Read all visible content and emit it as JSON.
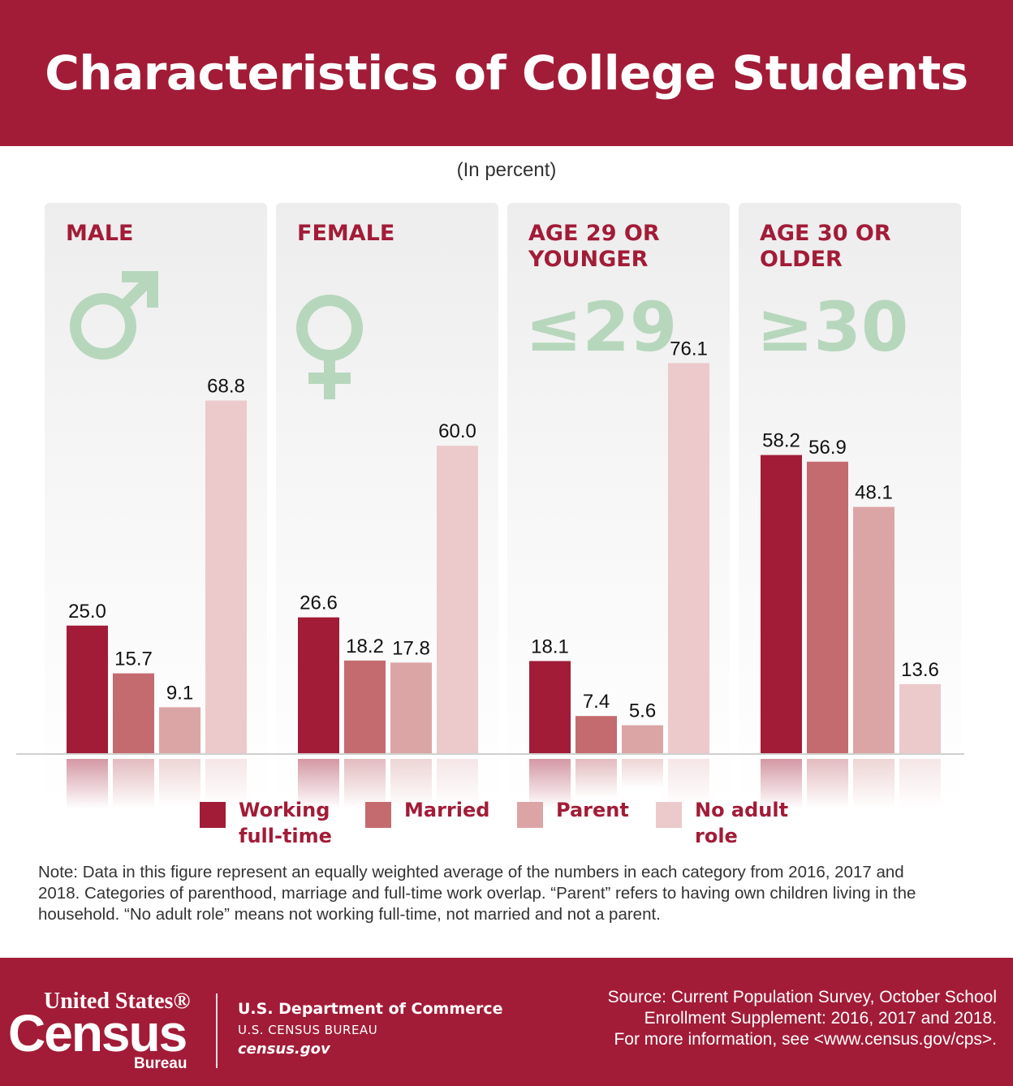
{
  "header": {
    "title": "Characteristics of College Students"
  },
  "subtitle": "(In percent)",
  "colors": {
    "brand": "#a21c37",
    "working_full_time": "#a21c37",
    "married": "#c46b70",
    "parent": "#dca5a5",
    "no_adult_role": "#ecc9cb",
    "symbol_green": "#b7d7bd"
  },
  "panels": [
    {
      "title_lines": [
        "MALE"
      ],
      "icon": "male-symbol-icon"
    },
    {
      "title_lines": [
        "FEMALE"
      ],
      "icon": "female-symbol-icon"
    },
    {
      "title_lines": [
        "AGE 29 OR",
        "YOUNGER"
      ],
      "icon": "less-than-or-equal-29-icon",
      "symbol_text": "≤29"
    },
    {
      "title_lines": [
        "AGE 30 OR",
        "OLDER"
      ],
      "icon": "greater-than-or-equal-30-icon",
      "symbol_text": "≥30"
    }
  ],
  "chart_data": {
    "type": "bar",
    "title": "Characteristics of College Students",
    "subtitle": "(In percent)",
    "categories": [
      "MALE",
      "FEMALE",
      "AGE 29 OR YOUNGER",
      "AGE 30 OR OLDER"
    ],
    "series": [
      {
        "name": "Working full-time",
        "values": [
          25.0,
          26.6,
          18.1,
          58.2
        ],
        "labels": [
          "25.0",
          "26.6",
          "18.1",
          "58.2"
        ]
      },
      {
        "name": "Married",
        "values": [
          15.7,
          18.2,
          7.4,
          56.9
        ],
        "labels": [
          "15.7",
          "18.2",
          "7.4",
          "56.9"
        ]
      },
      {
        "name": "Parent",
        "values": [
          9.1,
          17.8,
          5.6,
          48.1
        ],
        "labels": [
          "9.1",
          "17.8",
          "5.6",
          "48.1"
        ]
      },
      {
        "name": "No adult role",
        "values": [
          68.8,
          60.0,
          76.1,
          13.6
        ],
        "labels": [
          "68.8",
          "60.0",
          "76.1",
          "13.6"
        ]
      }
    ],
    "ylim": [
      0,
      100
    ],
    "grid": false,
    "legend": "bottom"
  },
  "legend": {
    "items": [
      {
        "line1": "Working",
        "line2": "full-time"
      },
      {
        "line1": "Married",
        "line2": ""
      },
      {
        "line1": "Parent",
        "line2": ""
      },
      {
        "line1": "No adult",
        "line2": "role"
      }
    ]
  },
  "note": "Note: Data in this figure represent an equally weighted average of the numbers in each category from 2016, 2017 and 2018. Categories of parenthood, marriage and full-time work overlap. “Parent” refers to having own children living in the household. “No adult role” means not working full-time, not married and not a parent.",
  "footer": {
    "logo": {
      "top": "United States®",
      "main": "Census",
      "bottom": "Bureau"
    },
    "dept_line1": "U.S. Department of Commerce",
    "dept_line2": "U.S. CENSUS BUREAU",
    "dept_line3": "census.gov",
    "source_line1": "Source: Current Population Survey, October School",
    "source_line2": "Enrollment Supplement: 2016, 2017 and 2018.",
    "source_line3": "For more information, see <www.census.gov/cps>."
  }
}
